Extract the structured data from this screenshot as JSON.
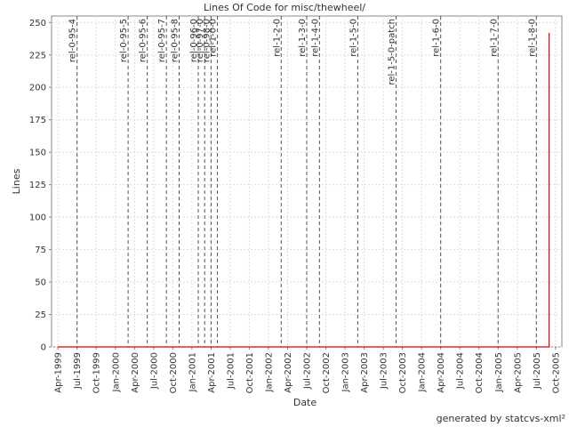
{
  "chart_data": {
    "type": "line",
    "title": "Lines Of Code for misc/thewheel/",
    "x_label": "Date",
    "y_label": "Lines",
    "footer": "generated by statcvs-xml²",
    "x": [
      "Apr-1999",
      "Sep-2005",
      "Sep-2005"
    ],
    "series": [
      {
        "name": "Lines",
        "color": "#e00000",
        "values": [
          0,
          0,
          242
        ]
      }
    ],
    "xlim": [
      "Mar-1999",
      "Nov-2005"
    ],
    "xticks": [
      "Apr-1999",
      "Jul-1999",
      "Oct-1999",
      "Jan-2000",
      "Apr-2000",
      "Jul-2000",
      "Oct-2000",
      "Jan-2001",
      "Apr-2001",
      "Jul-2001",
      "Oct-2001",
      "Jan-2002",
      "Apr-2002",
      "Jul-2002",
      "Oct-2002",
      "Jan-2003",
      "Apr-2003",
      "Jul-2003",
      "Oct-2003",
      "Jan-2004",
      "Apr-2004",
      "Jul-2004",
      "Oct-2004",
      "Jan-2005",
      "Apr-2005",
      "Jul-2005",
      "Oct-2005"
    ],
    "ylim": [
      0,
      255
    ],
    "yticks": [
      0,
      25,
      50,
      75,
      100,
      125,
      150,
      175,
      200,
      225,
      250
    ],
    "grid": true,
    "annotations": [
      {
        "label": "rel-0-95-4",
        "x": "Jul-1999"
      },
      {
        "label": "rel-0-95-5",
        "x": "Mar-2000"
      },
      {
        "label": "rel-0-95-6",
        "x": "Jun-2000"
      },
      {
        "label": "rel-0-95-7",
        "x": "Sep-2000"
      },
      {
        "label": "rel-0-95-8",
        "x": "Nov-2000"
      },
      {
        "label": "rel-0-96-0",
        "x": "Feb-2001"
      },
      {
        "label": "rel-0-97-0",
        "x": "Mar-2001"
      },
      {
        "label": "rel-0-98-0",
        "x": "Apr-2001"
      },
      {
        "label": "rel-1-0-0",
        "x": "May-2001"
      },
      {
        "label": "rel-1-2-0",
        "x": "Mar-2002"
      },
      {
        "label": "rel-1-3-0",
        "x": "Jul-2002"
      },
      {
        "label": "rel-1-4-0",
        "x": "Sep-2002"
      },
      {
        "label": "rel-1-5-0",
        "x": "Mar-2003"
      },
      {
        "label": "rel-1-5-0-patch",
        "x": "Sep-2003"
      },
      {
        "label": "rel-1-6-0",
        "x": "Apr-2004"
      },
      {
        "label": "rel-1-7-0",
        "x": "Jan-2005"
      },
      {
        "label": "rel-1-8-0",
        "x": "Jul-2005"
      }
    ]
  }
}
